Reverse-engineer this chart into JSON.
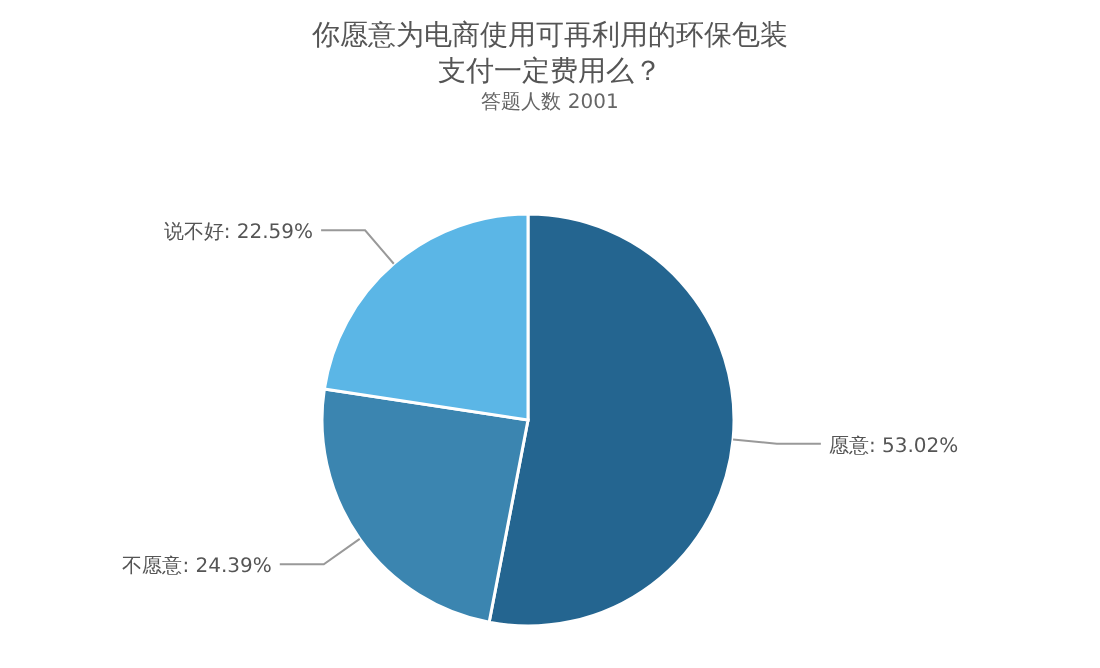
{
  "chart_data": {
    "type": "pie",
    "title": "你愿意为电商使用可再利用的环保包装支付一定费用么？",
    "subtitle": "答题人数 2001",
    "categories": [
      "愿意",
      "不愿意",
      "说不好"
    ],
    "values": [
      53.02,
      24.39,
      22.59
    ],
    "colors": [
      "#246590",
      "#3b85b0",
      "#5bb6e6"
    ],
    "value_labels": [
      ": 53.02%",
      ": 24.39%",
      ": 22.59%"
    ]
  }
}
